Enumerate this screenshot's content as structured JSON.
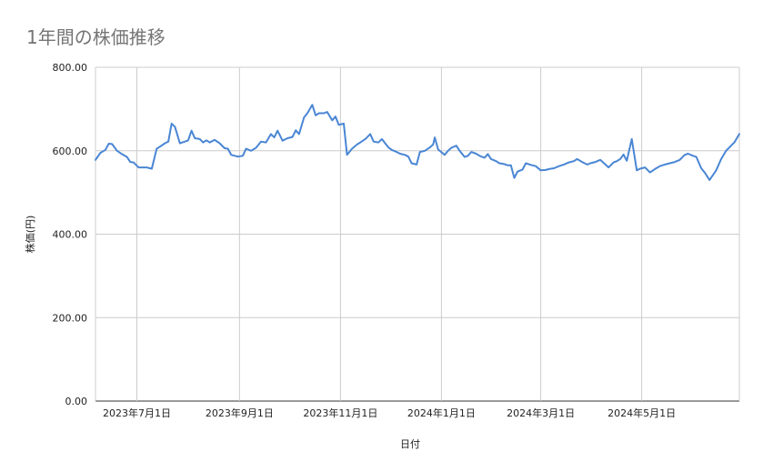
{
  "chart_data": {
    "type": "line",
    "title": "1年間の株価推移",
    "xlabel": "日付",
    "ylabel": "株価(円)",
    "ylim": [
      0,
      800
    ],
    "xlim": [
      "2023-06-06",
      "2024-06-29"
    ],
    "y_ticks": [
      "0.00",
      "200.00",
      "400.00",
      "600.00",
      "800.00"
    ],
    "x_ticks": [
      {
        "date": "2023-07-01",
        "label": "2023年7月1日"
      },
      {
        "date": "2023-09-01",
        "label": "2023年9月1日"
      },
      {
        "date": "2023-11-01",
        "label": "2023年11月1日"
      },
      {
        "date": "2024-01-01",
        "label": "2024年1月1日"
      },
      {
        "date": "2024-03-01",
        "label": "2024年3月1日"
      },
      {
        "date": "2024-05-01",
        "label": "2024年5月1日"
      }
    ],
    "grid": true,
    "line_color": "#4a86d4",
    "series": [
      {
        "name": "",
        "points": [
          [
            "2023-06-06",
            578
          ],
          [
            "2023-06-09",
            595
          ],
          [
            "2023-06-12",
            602
          ],
          [
            "2023-06-14",
            617
          ],
          [
            "2023-06-16",
            616
          ],
          [
            "2023-06-19",
            600
          ],
          [
            "2023-06-22",
            592
          ],
          [
            "2023-06-25",
            585
          ],
          [
            "2023-06-27",
            573
          ],
          [
            "2023-06-29",
            572
          ],
          [
            "2023-07-02",
            560
          ],
          [
            "2023-07-07",
            560
          ],
          [
            "2023-07-10",
            557
          ],
          [
            "2023-07-13",
            605
          ],
          [
            "2023-07-15",
            610
          ],
          [
            "2023-07-18",
            618
          ],
          [
            "2023-07-20",
            622
          ],
          [
            "2023-07-22",
            665
          ],
          [
            "2023-07-24",
            657
          ],
          [
            "2023-07-27",
            618
          ],
          [
            "2023-07-30",
            622
          ],
          [
            "2023-08-01",
            625
          ],
          [
            "2023-08-03",
            648
          ],
          [
            "2023-08-05",
            630
          ],
          [
            "2023-08-08",
            628
          ],
          [
            "2023-08-10",
            620
          ],
          [
            "2023-08-12",
            625
          ],
          [
            "2023-08-14",
            620
          ],
          [
            "2023-08-17",
            626
          ],
          [
            "2023-08-20",
            618
          ],
          [
            "2023-08-23",
            606
          ],
          [
            "2023-08-25",
            605
          ],
          [
            "2023-08-27",
            590
          ],
          [
            "2023-08-31",
            586
          ],
          [
            "2023-09-03",
            588
          ],
          [
            "2023-09-05",
            605
          ],
          [
            "2023-09-08",
            600
          ],
          [
            "2023-09-11",
            607
          ],
          [
            "2023-09-14",
            622
          ],
          [
            "2023-09-17",
            620
          ],
          [
            "2023-09-20",
            640
          ],
          [
            "2023-09-22",
            632
          ],
          [
            "2023-09-24",
            648
          ],
          [
            "2023-09-27",
            624
          ],
          [
            "2023-09-30",
            630
          ],
          [
            "2023-10-03",
            633
          ],
          [
            "2023-10-05",
            649
          ],
          [
            "2023-10-07",
            640
          ],
          [
            "2023-10-10",
            680
          ],
          [
            "2023-10-12",
            690
          ],
          [
            "2023-10-15",
            710
          ],
          [
            "2023-10-17",
            685
          ],
          [
            "2023-10-19",
            690
          ],
          [
            "2023-10-22",
            690
          ],
          [
            "2023-10-24",
            693
          ],
          [
            "2023-10-27",
            673
          ],
          [
            "2023-10-29",
            682
          ],
          [
            "2023-10-31",
            662
          ],
          [
            "2023-11-03",
            665
          ],
          [
            "2023-11-05",
            590
          ],
          [
            "2023-11-08",
            605
          ],
          [
            "2023-11-11",
            615
          ],
          [
            "2023-11-13",
            620
          ],
          [
            "2023-11-16",
            628
          ],
          [
            "2023-11-19",
            640
          ],
          [
            "2023-11-21",
            622
          ],
          [
            "2023-11-24",
            620
          ],
          [
            "2023-11-26",
            628
          ],
          [
            "2023-11-30",
            608
          ],
          [
            "2023-12-02",
            602
          ],
          [
            "2023-12-05",
            597
          ],
          [
            "2023-12-07",
            593
          ],
          [
            "2023-12-10",
            590
          ],
          [
            "2023-12-12",
            586
          ],
          [
            "2023-12-14",
            570
          ],
          [
            "2023-12-17",
            567
          ],
          [
            "2023-12-19",
            597
          ],
          [
            "2023-12-22",
            600
          ],
          [
            "2023-12-25",
            608
          ],
          [
            "2023-12-27",
            615
          ],
          [
            "2023-12-28",
            632
          ],
          [
            "2023-12-30",
            603
          ],
          [
            "2024-01-03",
            590
          ],
          [
            "2024-01-05",
            600
          ],
          [
            "2024-01-07",
            607
          ],
          [
            "2024-01-10",
            612
          ],
          [
            "2024-01-12",
            600
          ],
          [
            "2024-01-15",
            585
          ],
          [
            "2024-01-17",
            588
          ],
          [
            "2024-01-19",
            597
          ],
          [
            "2024-01-22",
            593
          ],
          [
            "2024-01-24",
            588
          ],
          [
            "2024-01-27",
            583
          ],
          [
            "2024-01-29",
            592
          ],
          [
            "2024-01-31",
            580
          ],
          [
            "2024-02-03",
            575
          ],
          [
            "2024-02-05",
            570
          ],
          [
            "2024-02-08",
            568
          ],
          [
            "2024-02-10",
            565
          ],
          [
            "2024-02-12",
            565
          ],
          [
            "2024-02-14",
            535
          ],
          [
            "2024-02-16",
            550
          ],
          [
            "2024-02-19",
            555
          ],
          [
            "2024-02-21",
            570
          ],
          [
            "2024-02-24",
            566
          ],
          [
            "2024-02-27",
            563
          ],
          [
            "2024-03-01",
            553
          ],
          [
            "2024-03-04",
            554
          ],
          [
            "2024-03-06",
            556
          ],
          [
            "2024-03-09",
            558
          ],
          [
            "2024-03-12",
            563
          ],
          [
            "2024-03-15",
            567
          ],
          [
            "2024-03-18",
            572
          ],
          [
            "2024-03-21",
            575
          ],
          [
            "2024-03-23",
            580
          ],
          [
            "2024-03-26",
            573
          ],
          [
            "2024-03-29",
            567
          ],
          [
            "2024-03-31",
            570
          ],
          [
            "2024-04-03",
            573
          ],
          [
            "2024-04-06",
            578
          ],
          [
            "2024-04-08",
            571
          ],
          [
            "2024-04-11",
            560
          ],
          [
            "2024-04-14",
            572
          ],
          [
            "2024-04-16",
            575
          ],
          [
            "2024-04-18",
            580
          ],
          [
            "2024-04-20",
            591
          ],
          [
            "2024-04-22",
            576
          ],
          [
            "2024-04-25",
            628
          ],
          [
            "2024-04-28",
            553
          ],
          [
            "2024-04-30",
            557
          ],
          [
            "2024-05-03",
            560
          ],
          [
            "2024-05-06",
            548
          ],
          [
            "2024-05-09",
            556
          ],
          [
            "2024-05-12",
            563
          ],
          [
            "2024-05-15",
            567
          ],
          [
            "2024-05-18",
            570
          ],
          [
            "2024-05-21",
            573
          ],
          [
            "2024-05-24",
            578
          ],
          [
            "2024-05-27",
            590
          ],
          [
            "2024-05-29",
            593
          ],
          [
            "2024-06-01",
            588
          ],
          [
            "2024-06-03",
            585
          ],
          [
            "2024-06-06",
            558
          ],
          [
            "2024-06-08",
            548
          ],
          [
            "2024-06-11",
            530
          ],
          [
            "2024-06-15",
            553
          ],
          [
            "2024-06-18",
            580
          ],
          [
            "2024-06-21",
            600
          ],
          [
            "2024-06-24",
            612
          ],
          [
            "2024-06-26",
            620
          ],
          [
            "2024-06-29",
            640
          ]
        ]
      }
    ]
  }
}
